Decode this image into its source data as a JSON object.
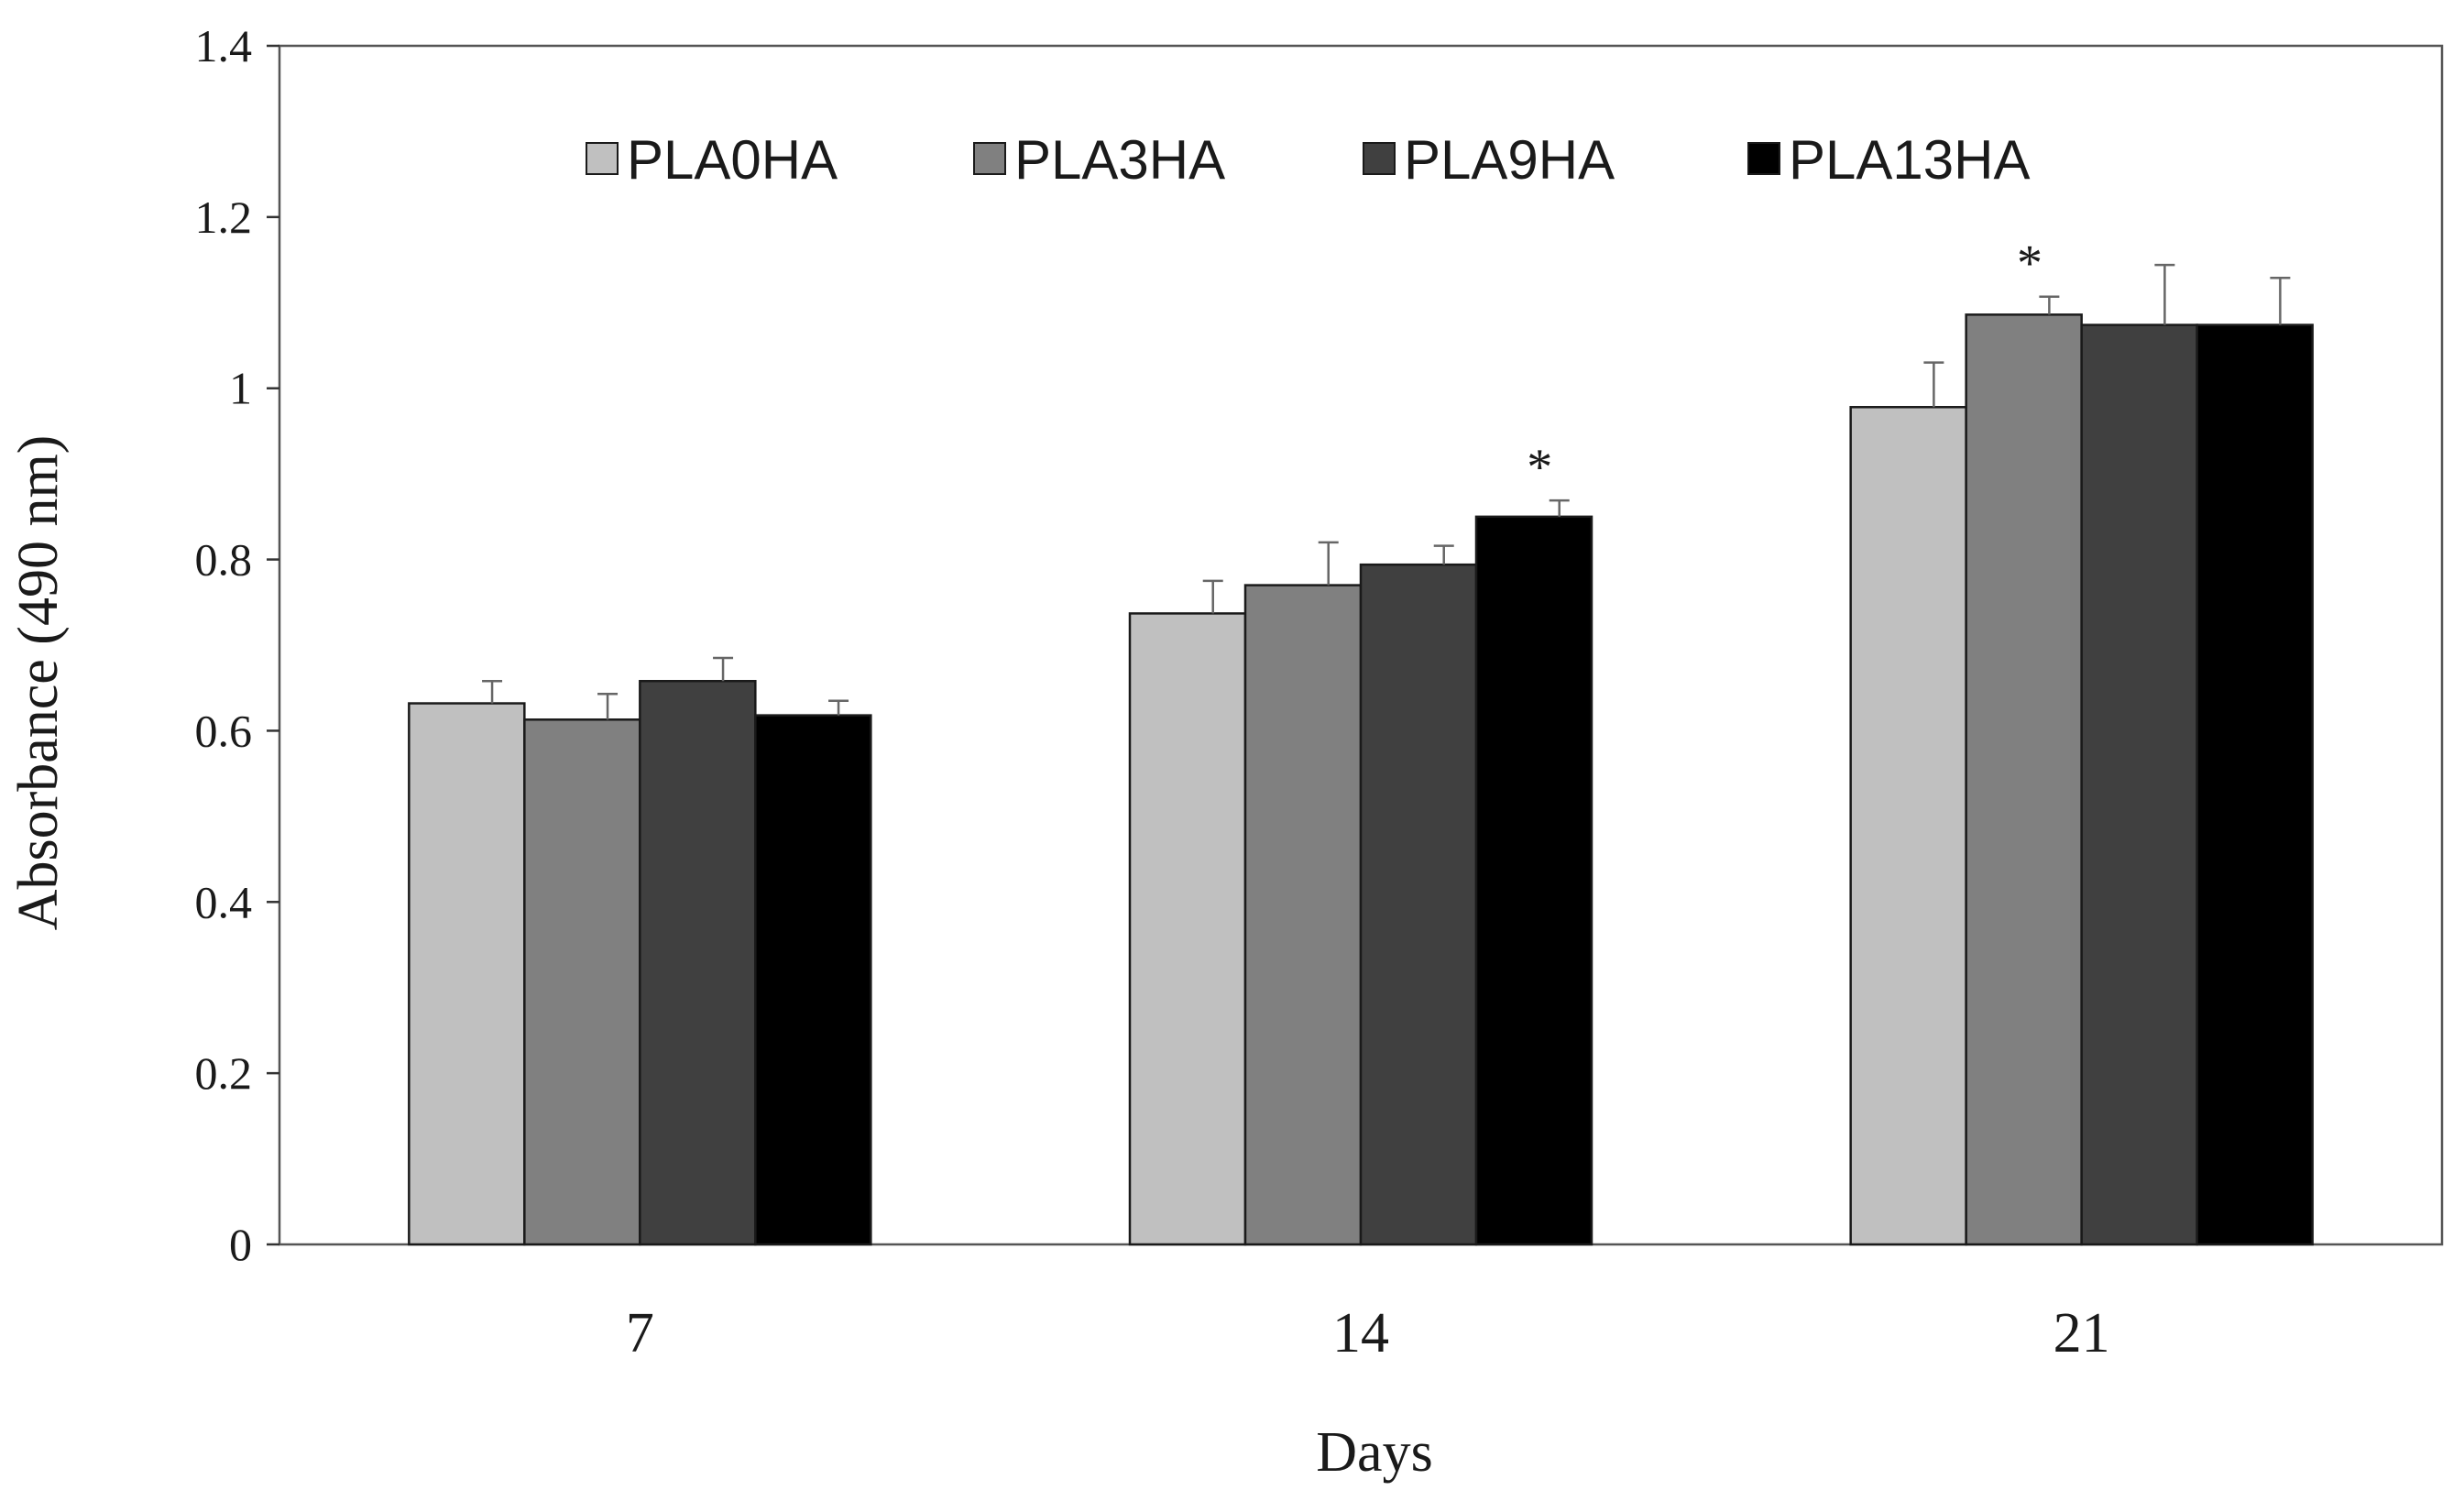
{
  "chart_data": {
    "type": "bar",
    "title": "",
    "xlabel": "Days",
    "ylabel": "Absorbance  (490 nm)",
    "categories": [
      "7",
      "14",
      "21"
    ],
    "ylim": [
      0,
      1.4
    ],
    "yticks": [
      0,
      0.2,
      0.4,
      0.6,
      0.8,
      1,
      1.2,
      1.4
    ],
    "ytick_labels": [
      "0",
      "0.2",
      "0.4",
      "0.6",
      "0.8",
      "1",
      "1.2",
      "1.4"
    ],
    "legend_position": "top-center",
    "grid": false,
    "series": [
      {
        "name": "PLA0HA",
        "color": "#c0c0c0",
        "values": [
          0.632,
          0.737,
          0.978
        ],
        "errors": [
          0.026,
          0.038,
          0.052
        ]
      },
      {
        "name": "PLA3HA",
        "color": "#808080",
        "values": [
          0.613,
          0.77,
          1.086
        ],
        "errors": [
          0.03,
          0.05,
          0.021
        ]
      },
      {
        "name": "PLA9HA",
        "color": "#404040",
        "values": [
          0.658,
          0.794,
          1.074
        ],
        "errors": [
          0.027,
          0.022,
          0.07
        ]
      },
      {
        "name": "PLA13HA",
        "color": "#000000",
        "values": [
          0.618,
          0.85,
          1.074
        ],
        "errors": [
          0.017,
          0.019,
          0.055
        ]
      }
    ],
    "annotations": [
      {
        "text": "*",
        "category": "14",
        "series": "PLA13HA"
      },
      {
        "text": "*",
        "category": "21",
        "series": "PLA3HA"
      }
    ]
  }
}
